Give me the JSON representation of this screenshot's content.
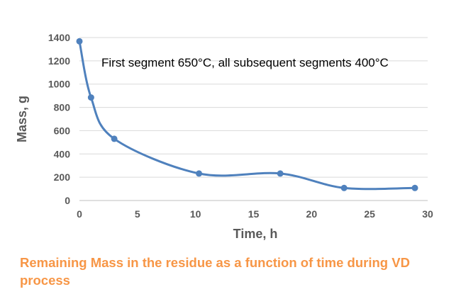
{
  "chart_data": {
    "type": "line",
    "smooth": true,
    "xlabel": "Time, h",
    "ylabel": "Mass, g",
    "xlim": [
      0,
      30
    ],
    "ylim": [
      0,
      1400
    ],
    "xticks": [
      "0",
      "5",
      "10",
      "15",
      "20",
      "25",
      "30"
    ],
    "yticks": [
      "0",
      "200",
      "400",
      "600",
      "800",
      "1000",
      "1200",
      "1400"
    ],
    "grid": "horizontal",
    "annotation": "First segment 650°C, all subsequent segments 400°C",
    "series": [
      {
        "color": "#4f81bd",
        "x": [
          0,
          1,
          3,
          10.3,
          17.3,
          22.8,
          28.9
        ],
        "y": [
          1368,
          885,
          530,
          232,
          232,
          108,
          108
        ]
      }
    ]
  },
  "caption": "Remaining Mass in the residue as a function of time during VD process"
}
